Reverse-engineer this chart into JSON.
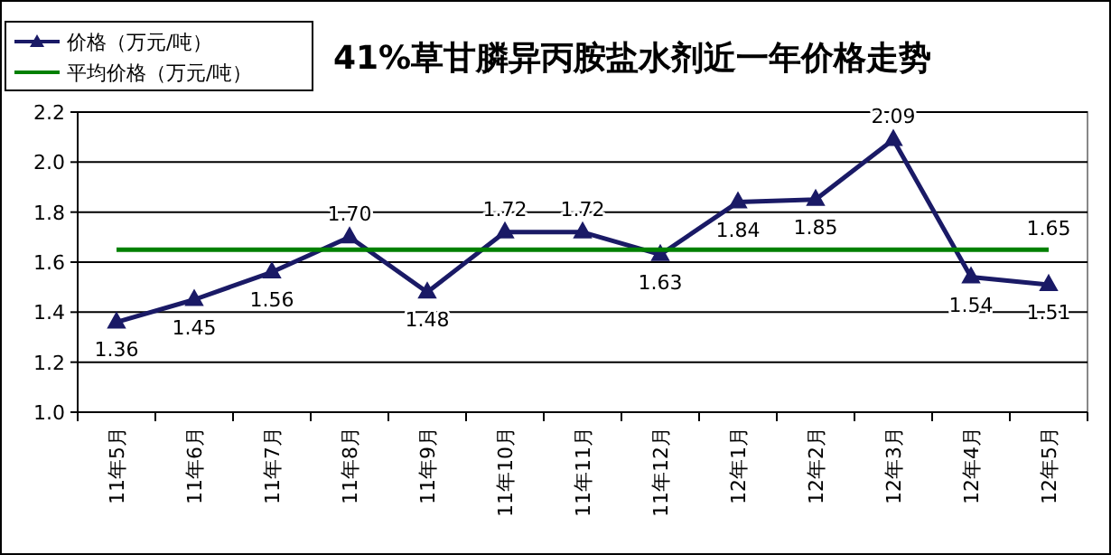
{
  "chart_data": {
    "type": "line",
    "title": "41%草甘膦异丙胺盐水剂近一年价格走势",
    "categories": [
      "11年5月",
      "11年6月",
      "11年7月",
      "11年8月",
      "11年9月",
      "11年10月",
      "11年11月",
      "11年12月",
      "12年1月",
      "12年2月",
      "12年3月",
      "12年4月",
      "12年5月"
    ],
    "series": [
      {
        "name": "价格（万元/吨）",
        "color": "#1a1a66",
        "marker": "triangle",
        "values": [
          1.36,
          1.45,
          1.56,
          1.7,
          1.48,
          1.72,
          1.72,
          1.63,
          1.84,
          1.85,
          2.09,
          1.54,
          1.51
        ],
        "value_labels": [
          "1.36",
          "1.45",
          "1.56",
          "1.70",
          "1.48",
          "1.72",
          "1.72",
          "1.63",
          "1.84",
          "1.85",
          "2.09",
          "1.54",
          "1.51"
        ]
      },
      {
        "name": "平均价格（万元/吨）",
        "color": "#008000",
        "marker": "none",
        "values": [
          1.65,
          1.65,
          1.65,
          1.65,
          1.65,
          1.65,
          1.65,
          1.65,
          1.65,
          1.65,
          1.65,
          1.65,
          1.65
        ],
        "value_labels": [
          null,
          null,
          null,
          null,
          null,
          null,
          null,
          null,
          null,
          null,
          null,
          null,
          "1.65"
        ]
      }
    ],
    "ylim": [
      1.0,
      2.2
    ],
    "yticks": [
      {
        "value": 1.0,
        "label": "1.0"
      },
      {
        "value": 1.2,
        "label": "1.2"
      },
      {
        "value": 1.4,
        "label": "1.4"
      },
      {
        "value": 1.6,
        "label": "1.6"
      },
      {
        "value": 1.8,
        "label": "1.8"
      },
      {
        "value": 2.0,
        "label": "2.0"
      },
      {
        "value": 2.2,
        "label": "2.2"
      }
    ],
    "grid": "y",
    "legend": "top left",
    "line_style": "solid"
  }
}
